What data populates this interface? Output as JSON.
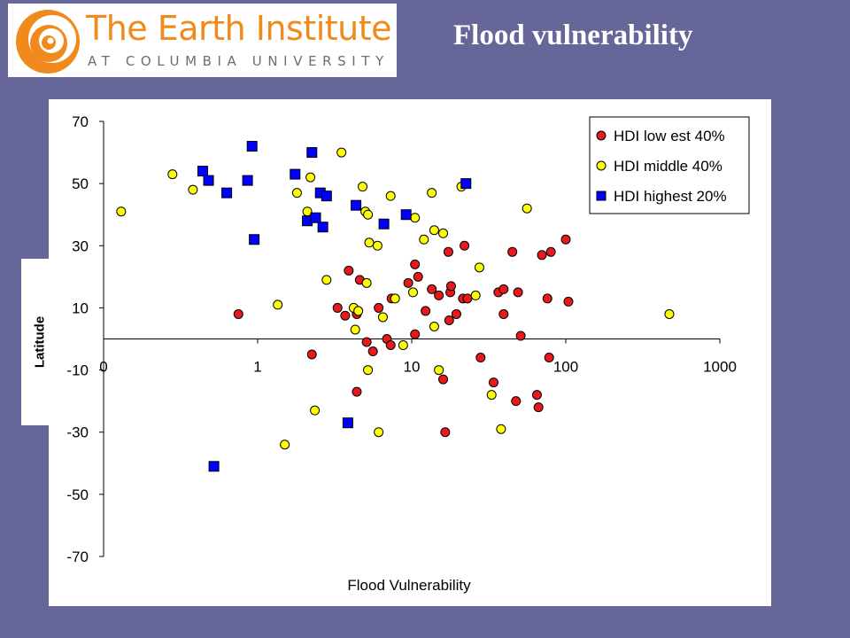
{
  "logo": {
    "title": "The Earth Institute",
    "subtitle": "AT COLUMBIA UNIVERSITY",
    "color": "#f08a1c",
    "icon": "swirl-icon"
  },
  "slide": {
    "title": "Flood vulnerability",
    "background": "#666699"
  },
  "chart_data": {
    "type": "scatter",
    "title": "",
    "xlabel": "Flood Vulnerability",
    "ylabel": "Latitude",
    "x_scale": "log",
    "xlim": [
      0.1,
      1000
    ],
    "ylim": [
      -70,
      70
    ],
    "x_ticks": [
      0.1,
      1,
      10,
      100,
      1000
    ],
    "x_tick_labels": [
      "0",
      "1",
      "10",
      "100",
      "1000"
    ],
    "y_ticks": [
      70,
      50,
      30,
      10,
      -10,
      -30,
      -50,
      -70
    ],
    "y_tick_labels": [
      "70",
      "50",
      "30",
      "10",
      "-10",
      "-30",
      "-50",
      "-70"
    ],
    "grid": false,
    "legend_position": "top-right",
    "series": [
      {
        "name": "HDI low est 40%",
        "marker": "circle",
        "color": "#e8191b",
        "points": [
          [
            0.75,
            8
          ],
          [
            2.25,
            -5
          ],
          [
            3.3,
            10
          ],
          [
            3.7,
            7.5
          ],
          [
            3.9,
            22
          ],
          [
            4.4,
            8
          ],
          [
            4.6,
            19
          ],
          [
            4.4,
            -17
          ],
          [
            5.1,
            -1
          ],
          [
            5.6,
            -4
          ],
          [
            6.1,
            10
          ],
          [
            6.9,
            0
          ],
          [
            7.3,
            -2
          ],
          [
            7.4,
            13
          ],
          [
            9.5,
            18
          ],
          [
            10.5,
            24
          ],
          [
            10.5,
            1.5
          ],
          [
            11,
            20
          ],
          [
            12.3,
            9
          ],
          [
            13.5,
            16
          ],
          [
            15,
            14
          ],
          [
            16,
            -13
          ],
          [
            16.5,
            -30
          ],
          [
            17.3,
            28
          ],
          [
            17.5,
            6
          ],
          [
            17.8,
            15
          ],
          [
            18,
            17
          ],
          [
            19.5,
            8
          ],
          [
            21.5,
            13
          ],
          [
            22,
            30
          ],
          [
            23,
            13
          ],
          [
            28,
            -6
          ],
          [
            34,
            -14
          ],
          [
            36.5,
            15
          ],
          [
            39.5,
            16
          ],
          [
            39.5,
            8
          ],
          [
            45,
            28
          ],
          [
            47.5,
            -20
          ],
          [
            49,
            15
          ],
          [
            51,
            1
          ],
          [
            65,
            -18
          ],
          [
            66.5,
            -22
          ],
          [
            70,
            27
          ],
          [
            76,
            13
          ],
          [
            78,
            -6
          ],
          [
            80,
            28
          ],
          [
            100,
            32
          ],
          [
            104,
            12
          ]
        ]
      },
      {
        "name": "HDI middle 40%",
        "marker": "circle",
        "color": "#ffff00",
        "points": [
          [
            0.13,
            41
          ],
          [
            0.28,
            53
          ],
          [
            0.38,
            48
          ],
          [
            1.35,
            11
          ],
          [
            1.5,
            -34
          ],
          [
            1.8,
            47
          ],
          [
            2.1,
            41
          ],
          [
            2.2,
            52
          ],
          [
            2.35,
            -23
          ],
          [
            2.8,
            19
          ],
          [
            3.5,
            60
          ],
          [
            4.2,
            10
          ],
          [
            4.3,
            3
          ],
          [
            4.5,
            9
          ],
          [
            4.8,
            49
          ],
          [
            5.0,
            41
          ],
          [
            5.1,
            18
          ],
          [
            5.2,
            -10
          ],
          [
            5.2,
            40
          ],
          [
            5.3,
            31
          ],
          [
            6.0,
            30
          ],
          [
            6.1,
            -30
          ],
          [
            6.5,
            7
          ],
          [
            7.3,
            46
          ],
          [
            7.8,
            13
          ],
          [
            8.8,
            -2
          ],
          [
            10.2,
            15
          ],
          [
            10.5,
            39
          ],
          [
            12,
            32
          ],
          [
            13.5,
            47
          ],
          [
            14,
            35
          ],
          [
            14,
            4
          ],
          [
            15,
            -10
          ],
          [
            16,
            34
          ],
          [
            21,
            49
          ],
          [
            26,
            14
          ],
          [
            27.5,
            23
          ],
          [
            33,
            -18
          ],
          [
            38,
            -29
          ],
          [
            56,
            42
          ],
          [
            470,
            8
          ]
        ]
      },
      {
        "name": "HDI highest 20%",
        "marker": "square",
        "color": "#0000ff",
        "points": [
          [
            0.52,
            -41
          ],
          [
            0.44,
            54
          ],
          [
            0.48,
            51
          ],
          [
            0.63,
            47
          ],
          [
            0.86,
            51
          ],
          [
            0.92,
            62
          ],
          [
            0.95,
            32
          ],
          [
            1.75,
            53
          ],
          [
            2.1,
            38
          ],
          [
            2.25,
            60
          ],
          [
            2.38,
            39
          ],
          [
            2.55,
            47
          ],
          [
            2.65,
            36
          ],
          [
            2.8,
            46
          ],
          [
            3.85,
            -27
          ],
          [
            4.35,
            43
          ],
          [
            6.6,
            37
          ],
          [
            9.2,
            40
          ],
          [
            22.5,
            50
          ]
        ]
      }
    ]
  }
}
